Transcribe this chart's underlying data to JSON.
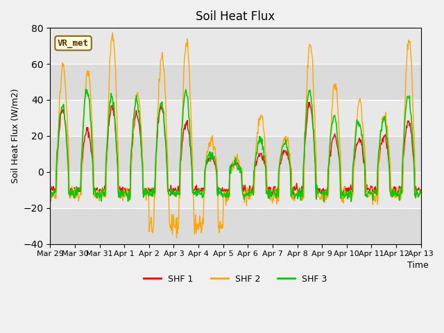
{
  "title": "Soil Heat Flux",
  "ylabel": "Soil Heat Flux (W/m2)",
  "xlabel": "Time",
  "ylim": [
    -40,
    80
  ],
  "yticks": [
    -40,
    -20,
    0,
    20,
    40,
    60,
    80
  ],
  "colors": {
    "SHF 1": "#ff0000",
    "SHF 2": "#ffa500",
    "SHF 3": "#00cc00"
  },
  "legend_label": "VR_met",
  "bg_color": "#e8e8e8",
  "grid_color": "#ffffff",
  "xtick_labels": [
    "Mar 29",
    "Mar 30",
    "Mar 31",
    "Apr 1",
    "Apr 2",
    "Apr 3",
    "Apr 4",
    "Apr 5",
    "Apr 6",
    "Apr 7",
    "Apr 8",
    "Apr 9",
    "Apr 10",
    "Apr 11",
    "Apr 12",
    "Apr 13"
  ],
  "n_days": 15,
  "points_per_day": 48
}
